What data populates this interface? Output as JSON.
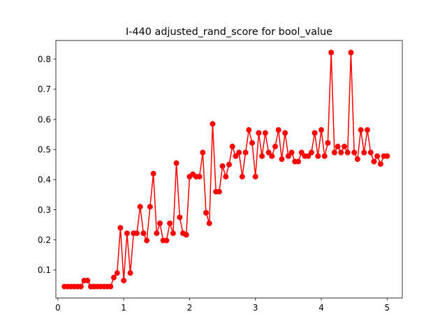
{
  "chart_data": {
    "type": "line",
    "title": "I-440 adjusted_rand_score for bool_value",
    "xlabel": "",
    "ylabel": "",
    "xlim": [
      -0.03,
      5.23
    ],
    "ylim": [
      0.007,
      0.862
    ],
    "xticks": [
      0,
      1,
      2,
      3,
      4,
      5
    ],
    "yticks": [
      0.1,
      0.2,
      0.3,
      0.4,
      0.5,
      0.6,
      0.7,
      0.8
    ],
    "xtick_labels": [
      "0",
      "1",
      "2",
      "3",
      "4",
      "5"
    ],
    "ytick_labels": [
      "0.1",
      "0.2",
      "0.3",
      "0.4",
      "0.5",
      "0.6",
      "0.7",
      "0.8"
    ],
    "grid": false,
    "series": [
      {
        "color": "#ff0000",
        "marker": "circle",
        "x": [
          0.1,
          0.15,
          0.2,
          0.25,
          0.3,
          0.35,
          0.4,
          0.45,
          0.5,
          0.55,
          0.6,
          0.65,
          0.7,
          0.75,
          0.8,
          0.85,
          0.9,
          0.95,
          1.0,
          1.05,
          1.1,
          1.15,
          1.2,
          1.25,
          1.3,
          1.35,
          1.4,
          1.45,
          1.5,
          1.55,
          1.6,
          1.65,
          1.7,
          1.75,
          1.8,
          1.85,
          1.9,
          1.95,
          2.0,
          2.05,
          2.1,
          2.15,
          2.2,
          2.25,
          2.3,
          2.35,
          2.4,
          2.45,
          2.5,
          2.55,
          2.6,
          2.65,
          2.7,
          2.75,
          2.8,
          2.85,
          2.9,
          2.95,
          3.0,
          3.05,
          3.1,
          3.15,
          3.2,
          3.25,
          3.3,
          3.35,
          3.4,
          3.45,
          3.5,
          3.55,
          3.6,
          3.65,
          3.7,
          3.75,
          3.8,
          3.85,
          3.9,
          3.95,
          4.0,
          4.05,
          4.1,
          4.15,
          4.2,
          4.25,
          4.3,
          4.35,
          4.4,
          4.45,
          4.5,
          4.55,
          4.6,
          4.65,
          4.7,
          4.75,
          4.8,
          4.85,
          4.9,
          4.95,
          5.0
        ],
        "y": [
          0.045,
          0.045,
          0.045,
          0.045,
          0.045,
          0.045,
          0.065,
          0.065,
          0.045,
          0.045,
          0.045,
          0.045,
          0.045,
          0.045,
          0.045,
          0.075,
          0.09,
          0.24,
          0.065,
          0.222,
          0.09,
          0.222,
          0.222,
          0.31,
          0.222,
          0.198,
          0.31,
          0.42,
          0.222,
          0.255,
          0.198,
          0.198,
          0.255,
          0.222,
          0.455,
          0.275,
          0.222,
          0.217,
          0.41,
          0.418,
          0.41,
          0.41,
          0.49,
          0.29,
          0.255,
          0.585,
          0.36,
          0.36,
          0.445,
          0.41,
          0.45,
          0.51,
          0.478,
          0.49,
          0.41,
          0.49,
          0.565,
          0.522,
          0.41,
          0.555,
          0.478,
          0.555,
          0.49,
          0.478,
          0.51,
          0.565,
          0.468,
          0.555,
          0.478,
          0.49,
          0.46,
          0.46,
          0.49,
          0.478,
          0.478,
          0.49,
          0.555,
          0.478,
          0.565,
          0.478,
          0.522,
          0.822,
          0.49,
          0.51,
          0.49,
          0.51,
          0.49,
          0.822,
          0.49,
          0.468,
          0.565,
          0.49,
          0.565,
          0.49,
          0.46,
          0.478,
          0.452,
          0.478,
          0.478
        ]
      }
    ]
  }
}
